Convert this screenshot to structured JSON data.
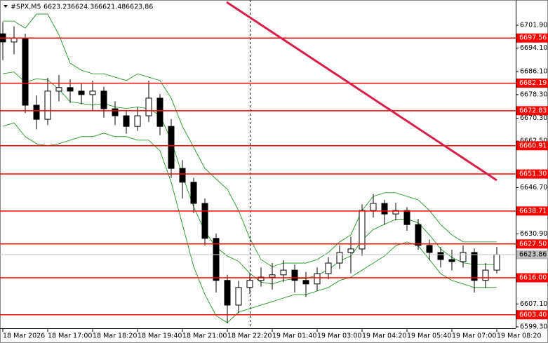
{
  "header": {
    "symbol": "#SPX,M5",
    "open": "6623.23",
    "high": "6624.36",
    "low": "6621.48",
    "close": "6623.86"
  },
  "chart_data": {
    "type": "candlestick",
    "categories": [
      "18 Mar 2026",
      null,
      null,
      null,
      "18 Mar 17:00",
      null,
      null,
      null,
      "18 Mar 18:20",
      null,
      null,
      null,
      "18 Mar 19:40",
      null,
      null,
      null,
      "18 Mar 21:00",
      null,
      null,
      null,
      "18 Mar 22:20",
      null,
      null,
      null,
      "19 Mar 01:40",
      null,
      null,
      null,
      "19 Mar 03:00",
      null,
      null,
      null,
      "19 Mar 04:20",
      null,
      null,
      null,
      "19 Mar 05:40",
      null,
      null,
      null,
      "19 Mar 07:00",
      null,
      null,
      null,
      "19 Mar 08:20"
    ],
    "open": [
      6699.0,
      6696.2,
      6697.5,
      6674.7,
      6669.9,
      6679.5,
      6680.7,
      6679.5,
      6678.3,
      6679.5,
      6673.5,
      6671.1,
      6667.5,
      6671.1,
      6677.1,
      6667.5,
      6653.2,
      6648.5,
      6641.3,
      6629.4,
      6615.1,
      6606.7,
      6612.7,
      6615.1,
      6616.2,
      6617.0,
      6618.6,
      6615.1,
      6613.9,
      6617.4,
      6621.0,
      6624.6,
      6625.8,
      6638.9,
      6641.3,
      6637.7,
      6638.9,
      6634.1,
      6627.0,
      6624.6,
      6622.2,
      6621.5,
      6624.6,
      6615.1,
      6618.6
    ],
    "high": [
      6703.0,
      6701.5,
      6699.0,
      6678.0,
      6684.0,
      6685.0,
      6683.5,
      6682.0,
      6683.0,
      6681.0,
      6676.0,
      6673.0,
      6674.0,
      6683.0,
      6678.5,
      6670.0,
      6656.0,
      6650.0,
      6643.0,
      6631.0,
      6617.0,
      6615.0,
      6617.5,
      6619.5,
      6621.0,
      6622.0,
      6620.5,
      6618.0,
      6619.5,
      6623.0,
      6627.0,
      6630.0,
      6641.0,
      6644.5,
      6642.5,
      6641.5,
      6640.0,
      6636.0,
      6629.0,
      6626.5,
      6625.5,
      6627.0,
      6626.0,
      6621.0,
      6626.5
    ],
    "low": [
      6690.0,
      6692.0,
      6672.0,
      6666.5,
      6668.0,
      6676.0,
      6675.5,
      6675.0,
      6673.0,
      6670.5,
      6668.0,
      6665.0,
      6666.0,
      6669.0,
      6664.5,
      6650.0,
      6643.0,
      6638.0,
      6627.0,
      6611.0,
      6600.5,
      6604.0,
      6610.5,
      6613.0,
      6612.0,
      6614.5,
      6611.0,
      6609.5,
      6611.5,
      6615.5,
      6619.0,
      6617.5,
      6623.5,
      6636.5,
      6634.0,
      6635.5,
      6632.0,
      6625.5,
      6622.0,
      6619.5,
      6618.5,
      6619.5,
      6611.0,
      6612.5,
      6617.5
    ],
    "close": [
      6696.2,
      6697.5,
      6674.7,
      6669.9,
      6679.5,
      6680.7,
      6679.5,
      6678.3,
      6679.5,
      6673.5,
      6671.1,
      6667.5,
      6671.1,
      6677.1,
      6667.5,
      6653.2,
      6648.5,
      6641.3,
      6629.4,
      6615.1,
      6606.7,
      6612.7,
      6615.1,
      6616.2,
      6617.0,
      6618.6,
      6615.1,
      6613.9,
      6617.4,
      6621.0,
      6624.6,
      6625.8,
      6638.9,
      6641.3,
      6637.7,
      6638.9,
      6634.1,
      6627.0,
      6624.6,
      6622.2,
      6621.5,
      6624.6,
      6615.1,
      6618.6,
      6623.9
    ],
    "bands": {
      "color": "#0a8a0a",
      "upper": [
        6703.3,
        6703.3,
        6700.9,
        6705.7,
        6705.7,
        6698.6,
        6689.0,
        6686.6,
        6685.4,
        6685.4,
        6684.2,
        6683.1,
        6685.4,
        6684.2,
        6683.1,
        6677.1,
        6667.5,
        6660.4,
        6653.2,
        6649.6,
        6646.1,
        6638.9,
        6629.4,
        6622.2,
        6619.8,
        6621.0,
        6621.0,
        6621.0,
        6622.2,
        6624.6,
        6628.2,
        6630.6,
        6638.9,
        6643.7,
        6644.9,
        6644.9,
        6643.7,
        6642.5,
        6638.9,
        6634.1,
        6630.6,
        6628.2,
        6628.2,
        6628.2,
        6628.2
      ],
      "middle": [
        6685.4,
        6686.0,
        6682.5,
        6683.7,
        6683.3,
        6680.1,
        6675.9,
        6675.3,
        6674.7,
        6675.3,
        6674.1,
        6673.6,
        6674.1,
        6673.5,
        6671.2,
        6662.8,
        6650.8,
        6640.1,
        6631.8,
        6626.4,
        6623.4,
        6621.6,
        6617.5,
        6614.5,
        6613.9,
        6615.1,
        6615.7,
        6615.7,
        6616.9,
        6618.7,
        6621.7,
        6623.4,
        6628.8,
        6632.4,
        6634.2,
        6635.9,
        6636.0,
        6634.7,
        6630.6,
        6625.8,
        6622.9,
        6621.1,
        6620.5,
        6620.5,
        6620.5
      ],
      "lower": [
        6667.5,
        6668.7,
        6664.0,
        6661.6,
        6660.9,
        6661.6,
        6662.8,
        6664.0,
        6664.0,
        6665.2,
        6664.0,
        6664.0,
        6662.8,
        6662.8,
        6659.2,
        6648.5,
        6634.1,
        6619.8,
        6610.3,
        6603.1,
        6600.7,
        6604.3,
        6605.5,
        6606.7,
        6607.9,
        6609.1,
        6610.3,
        6610.3,
        6611.5,
        6612.7,
        6615.1,
        6616.2,
        6618.6,
        6621.0,
        6623.4,
        6626.9,
        6628.2,
        6626.9,
        6622.2,
        6617.4,
        6615.1,
        6613.9,
        6612.7,
        6612.7,
        6612.7
      ]
    },
    "up_color": "#ffffff",
    "down_color": "#000000",
    "outline_color": "#000000",
    "ylim": [
      6598.82,
      6710.49
    ],
    "yticks": [
      {
        "value": 6701.9,
        "label": "6701.90"
      },
      {
        "value": 6694.1,
        "label": "6694.10"
      },
      {
        "value": 6686.1,
        "label": "6686.10"
      },
      {
        "value": 6678.3,
        "label": "6678.30"
      },
      {
        "value": 6670.3,
        "label": "6670.30"
      },
      {
        "value": 6662.5,
        "label": "6662.50"
      },
      {
        "value": 6646.7,
        "label": "6646.70"
      },
      {
        "value": 6630.9,
        "label": "6630.90"
      },
      {
        "value": 6607.1,
        "label": "6607.10"
      },
      {
        "value": 6599.3,
        "label": "6599.30"
      }
    ],
    "levels": {
      "color": "#ff0000",
      "values": [
        6697.56,
        6682.19,
        6672.83,
        6660.91,
        {
          "value": 6651.3,
          "label": "6651.30"
        },
        6638.71,
        {
          "value": 6627.5,
          "label": "6627.50"
        },
        {
          "value": 6616.0,
          "label": "6616.00"
        },
        {
          "value": 6603.4,
          "label": "6603.40"
        }
      ]
    },
    "trendline": {
      "color": "#d81e4a",
      "values": [
        6709.77,
        6649.17
      ]
    },
    "current_price": 6623.86,
    "grid": false
  }
}
